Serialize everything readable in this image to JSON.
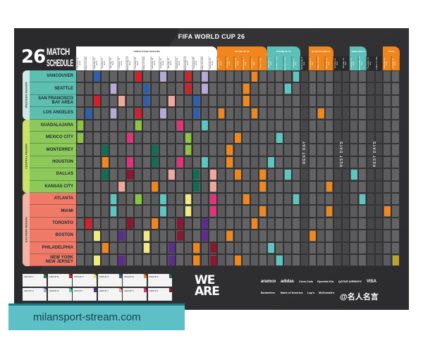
{
  "title": "FIFA WORLD CUP 26",
  "logo": {
    "number": "26",
    "line1": "MATCH",
    "line2": "SCHEDULE"
  },
  "phases": [
    {
      "label": "GROUP STAGE MATCHES",
      "start": 0,
      "count": 17,
      "color": "#ffffff"
    },
    {
      "label": "ROUND OF 32",
      "start": 17,
      "count": 6,
      "color": "#f0861c"
    },
    {
      "label": "ROUND OF 16",
      "start": 23,
      "count": 4,
      "color": "#5cbfb8"
    },
    {
      "label": "QUARTER-FINALS",
      "start": 28,
      "count": 3,
      "color": "#f0861c"
    },
    {
      "label": "SEMI-FINALS",
      "start": 33,
      "count": 2,
      "color": "#5cbfb8"
    },
    {
      "label": "FINAL",
      "start": 37,
      "count": 2,
      "color": "#f0861c"
    }
  ],
  "dates": [
    "Thursday 11 June",
    "Friday 12 June",
    "Saturday 13 June",
    "Sunday 14 June",
    "Monday 15 June",
    "Tuesday 16 June",
    "Wednesday 17 June",
    "Thursday 18 June",
    "Friday 19 June",
    "Saturday 20 June",
    "Sunday 21 June",
    "Monday 22 June",
    "Tuesday 23 June",
    "Wednesday 24 June",
    "Thursday 25 June",
    "Friday 26 June",
    "Saturday 27 June",
    "Sunday 28 June",
    "Monday 29 June",
    "Tuesday 30 June",
    "Wednesday 1 July",
    "Thursday 2 July",
    "Friday 3 July",
    "Saturday 4 July",
    "Sunday 5 July",
    "Monday 6 July",
    "Tuesday 7 July",
    "Wednesday 8 July",
    "Thursday 9 July",
    "Friday 10 July",
    "Saturday 11 July",
    "Sunday 12 July",
    "Monday 13 July",
    "Tuesday 14 July",
    "Wednesday 15 July",
    "Thursday 16 July",
    "Friday 17 July",
    "Saturday 18 July",
    "Sunday 19 July"
  ],
  "rest": [
    {
      "label": "REST DAY",
      "start": 27,
      "count": 1
    },
    {
      "label": "REST DAYS",
      "start": 31,
      "count": 2
    },
    {
      "label": "REST DAYS",
      "start": 35,
      "count": 2
    }
  ],
  "regions": [
    {
      "label": "WESTERN REGION",
      "start": 0,
      "count": 4,
      "color": "#cfe9e4",
      "cityColor": "#5cbfb0"
    },
    {
      "label": "CENTRAL REGION",
      "start": 4,
      "count": 6,
      "color": "#c9e26a",
      "cityColor": "#8cc85a"
    },
    {
      "label": "EASTERN REGION",
      "start": 10,
      "count": 6,
      "color": "#f3b3a6",
      "cityColor": "#f07a68"
    }
  ],
  "cities": [
    "VANCOUVER",
    "SEATTLE",
    "SAN FRANCISCO\nBAY AREA",
    "LOS ANGELES",
    "GUADALAJARA",
    "MEXICO CITY",
    "MONTERREY",
    "HOUSTON",
    "DALLAS",
    "KANSAS CITY",
    "ATLANTA",
    "MIAMI",
    "TORONTO",
    "BOSTON",
    "PHILADELPHIA",
    "NEW YORK\nNEW JERSEY"
  ],
  "colors": {
    "blue": "#2d5fae",
    "red": "#d4202c",
    "lavender": "#b8a8d8",
    "salmon": "#f2a79c",
    "green": "#8cc63f",
    "pink": "#e2327b",
    "teal": "#5cc6c0",
    "darkgreen": "#0f6e55",
    "orange": "#f0861c",
    "maroon": "#8b1832",
    "yellow": "#efeb7c",
    "purple": "#5c2d8f",
    "gold": "#b9a52a"
  },
  "matches": [
    [
      0,
      2,
      "blue"
    ],
    [
      0,
      7,
      "red"
    ],
    [
      0,
      10,
      "lavender"
    ],
    [
      0,
      13,
      "red"
    ],
    [
      0,
      15,
      "lavender"
    ],
    [
      0,
      21,
      "orange"
    ],
    [
      0,
      26,
      "teal"
    ],
    [
      1,
      4,
      "lavender"
    ],
    [
      1,
      8,
      "blue"
    ],
    [
      1,
      13,
      "red"
    ],
    [
      1,
      15,
      "lavender"
    ],
    [
      1,
      20,
      "orange"
    ],
    [
      1,
      25,
      "teal"
    ],
    [
      2,
      2,
      "red"
    ],
    [
      2,
      5,
      "salmon"
    ],
    [
      2,
      8,
      "blue"
    ],
    [
      2,
      11,
      "salmon"
    ],
    [
      2,
      14,
      "blue"
    ],
    [
      2,
      20,
      "orange"
    ],
    [
      3,
      1,
      "blue"
    ],
    [
      3,
      4,
      "lavender"
    ],
    [
      3,
      7,
      "red"
    ],
    [
      3,
      10,
      "lavender"
    ],
    [
      3,
      14,
      "blue"
    ],
    [
      3,
      17,
      "orange"
    ],
    [
      3,
      21,
      "orange"
    ],
    [
      3,
      29,
      "orange"
    ],
    [
      4,
      0,
      "green"
    ],
    [
      4,
      7,
      "green"
    ],
    [
      4,
      12,
      "pink"
    ],
    [
      4,
      15,
      "teal"
    ],
    [
      5,
      0,
      "green"
    ],
    [
      5,
      6,
      "pink"
    ],
    [
      5,
      13,
      "green"
    ],
    [
      5,
      19,
      "orange"
    ],
    [
      5,
      24,
      "teal"
    ],
    [
      6,
      3,
      "darkgreen"
    ],
    [
      6,
      9,
      "darkgreen"
    ],
    [
      6,
      13,
      "green"
    ],
    [
      6,
      18,
      "orange"
    ],
    [
      7,
      3,
      "orange"
    ],
    [
      7,
      6,
      "pink"
    ],
    [
      7,
      9,
      "darkgreen"
    ],
    [
      7,
      12,
      "pink"
    ],
    [
      7,
      15,
      "teal"
    ],
    [
      7,
      18,
      "orange"
    ],
    [
      7,
      23,
      "teal"
    ],
    [
      8,
      3,
      "darkgreen"
    ],
    [
      8,
      6,
      "maroon"
    ],
    [
      8,
      11,
      "salmon"
    ],
    [
      8,
      14,
      "darkgreen"
    ],
    [
      8,
      16,
      "salmon"
    ],
    [
      8,
      19,
      "orange"
    ],
    [
      8,
      22,
      "orange"
    ],
    [
      8,
      25,
      "teal"
    ],
    [
      8,
      33,
      "teal"
    ],
    [
      9,
      5,
      "salmon"
    ],
    [
      9,
      9,
      "orange"
    ],
    [
      9,
      14,
      "darkgreen"
    ],
    [
      9,
      16,
      "salmon"
    ],
    [
      9,
      22,
      "orange"
    ],
    [
      9,
      30,
      "orange"
    ],
    [
      10,
      4,
      "teal"
    ],
    [
      10,
      7,
      "green"
    ],
    [
      10,
      10,
      "teal"
    ],
    [
      10,
      13,
      "yellow"
    ],
    [
      10,
      16,
      "pink"
    ],
    [
      10,
      20,
      "orange"
    ],
    [
      10,
      26,
      "teal"
    ],
    [
      10,
      34,
      "teal"
    ],
    [
      11,
      4,
      "teal"
    ],
    [
      11,
      10,
      "teal"
    ],
    [
      11,
      13,
      "yellow"
    ],
    [
      11,
      16,
      "pink"
    ],
    [
      11,
      22,
      "orange"
    ],
    [
      11,
      30,
      "orange"
    ],
    [
      11,
      37,
      "orange"
    ],
    [
      12,
      1,
      "red"
    ],
    [
      12,
      6,
      "maroon"
    ],
    [
      12,
      9,
      "orange"
    ],
    [
      12,
      12,
      "maroon"
    ],
    [
      12,
      15,
      "purple"
    ],
    [
      12,
      21,
      "orange"
    ],
    [
      13,
      2,
      "yellow"
    ],
    [
      13,
      5,
      "purple"
    ],
    [
      13,
      8,
      "yellow"
    ],
    [
      13,
      12,
      "maroon"
    ],
    [
      13,
      15,
      "purple"
    ],
    [
      13,
      18,
      "orange"
    ],
    [
      13,
      28,
      "orange"
    ],
    [
      14,
      3,
      "orange"
    ],
    [
      14,
      8,
      "yellow"
    ],
    [
      14,
      11,
      "purple"
    ],
    [
      14,
      14,
      "orange"
    ],
    [
      14,
      16,
      "maroon"
    ],
    [
      14,
      23,
      "teal"
    ],
    [
      15,
      2,
      "yellow"
    ],
    [
      15,
      5,
      "purple"
    ],
    [
      15,
      11,
      "purple"
    ],
    [
      15,
      14,
      "orange"
    ],
    [
      15,
      16,
      "maroon"
    ],
    [
      15,
      19,
      "orange"
    ],
    [
      15,
      24,
      "teal"
    ],
    [
      15,
      38,
      "gold"
    ]
  ],
  "groups": [
    {
      "label": "GROUP A",
      "color": "#2e7d4f"
    },
    {
      "label": "GROUP B",
      "color": "#c62832"
    },
    {
      "label": "GROUP C",
      "color": "#e8e46a"
    },
    {
      "label": "GROUP D",
      "color": "#2d5fae"
    },
    {
      "label": "GROUP E",
      "color": "#f0861c"
    },
    {
      "label": "GROUP F",
      "color": "#0f6e55"
    },
    {
      "label": "GROUP G",
      "color": "#b8a8d8"
    },
    {
      "label": "GROUP H",
      "color": "#5cc6c0"
    },
    {
      "label": "GROUP I",
      "color": "#5c2d8f"
    },
    {
      "label": "GROUP J",
      "color": "#f2a79c"
    },
    {
      "label": "GROUP K",
      "color": "#e2327b"
    },
    {
      "label": "GROUP L",
      "color": "#8b1832"
    }
  ],
  "campaign": {
    "line1": "WE",
    "line2": "ARE",
    "badge": "FIFA"
  },
  "sponsors_row1": [
    "aramco",
    "adidas",
    "Coca-Cola",
    "Hyundai Kia",
    "QATAR AIRWAYS",
    "VISA"
  ],
  "sponsors_row2": [
    "Budweiser",
    "Bank of America",
    "Lay's",
    "McDonald's",
    "@名人名言"
  ],
  "watermark": "milansport-stream.com"
}
